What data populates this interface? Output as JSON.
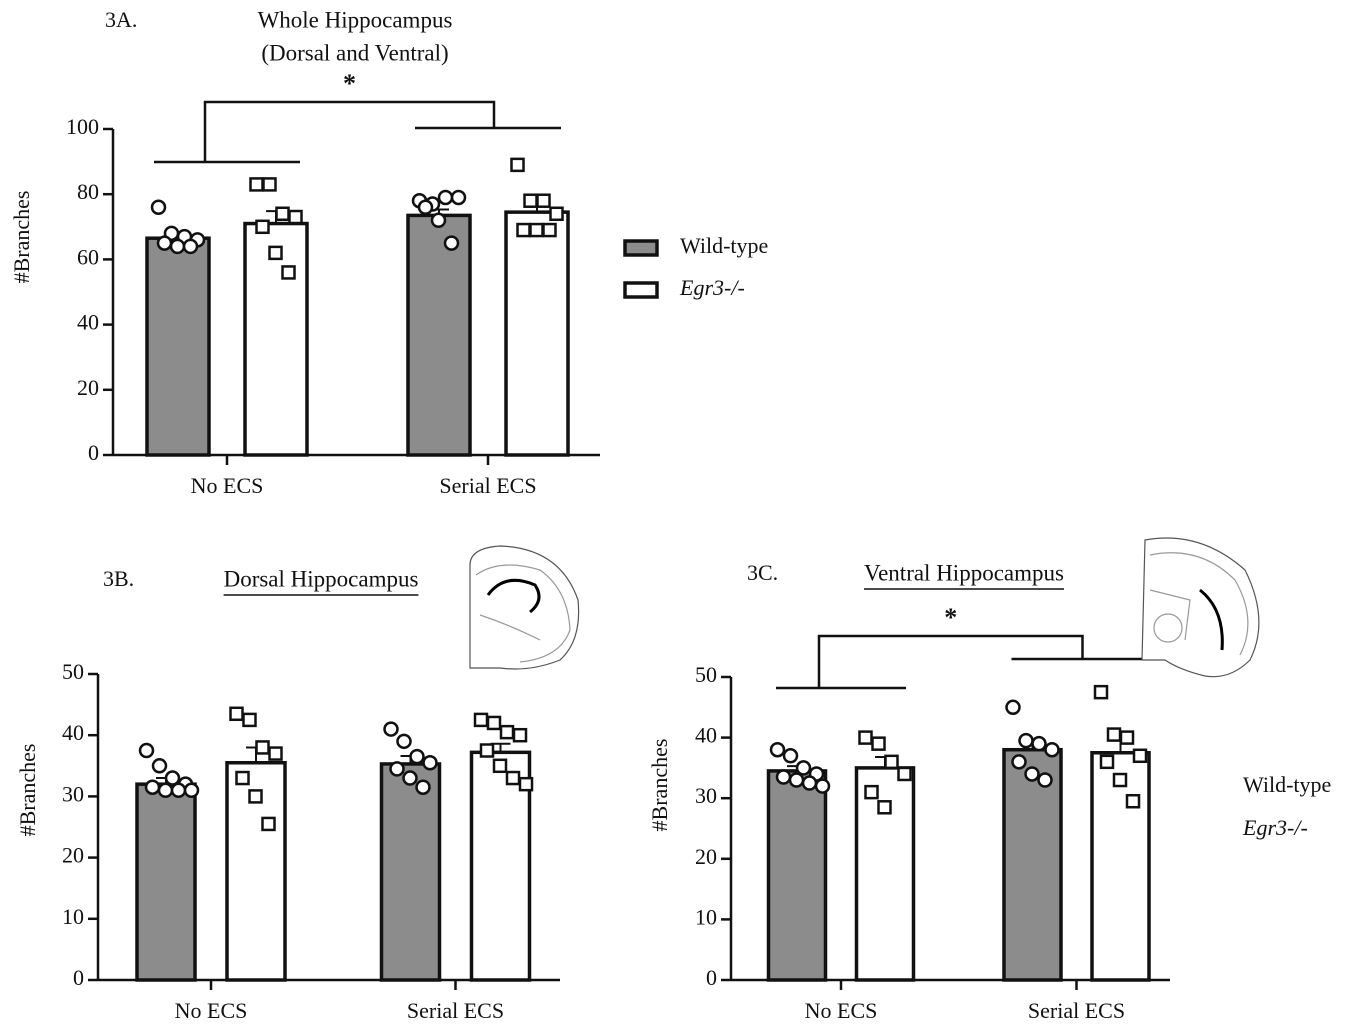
{
  "chart_data": [
    {
      "type": "bar",
      "panel": "3A.",
      "title": "Whole Hippocampus",
      "subtitle": "(Dorsal and Ventral)",
      "y_label": "#Branches",
      "categories": [
        "No ECS",
        "Serial ECS"
      ],
      "series": [
        {
          "name": "Wild-type",
          "color": "#8c8c8c",
          "marker": "circle",
          "values": [
            66.5,
            73.5
          ],
          "errors": [
            1.5,
            1.8
          ],
          "points": [
            [
              76,
              68,
              67,
              66,
              65,
              64,
              64
            ],
            [
              78,
              77,
              79,
              79,
              76,
              72,
              65
            ]
          ]
        },
        {
          "name": "Egr3-/-",
          "color": "#ffffff",
          "marker": "square",
          "values": [
            71,
            74.5
          ],
          "errors": [
            3.8,
            2.5
          ],
          "points": [
            [
              83,
              83,
              74,
              73,
              70,
              62,
              56
            ],
            [
              89,
              78,
              78,
              74,
              69,
              69,
              69
            ]
          ]
        }
      ],
      "ylim": [
        0,
        100
      ],
      "yticks": [
        0,
        20,
        40,
        60,
        80,
        100
      ],
      "significance": "*",
      "legend": "right",
      "legend_swatches": true
    },
    {
      "type": "bar",
      "panel": "3B.",
      "title": "Dorsal Hippocampus",
      "y_label": "#Branches",
      "categories": [
        "No ECS",
        "Serial ECS"
      ],
      "series": [
        {
          "color": "#8c8c8c",
          "marker": "circle",
          "values": [
            32,
            35.3
          ],
          "errors": [
            1,
            1.3
          ],
          "points": [
            [
              37.5,
              35,
              33,
              32,
              31.5,
              31,
              31,
              31
            ],
            [
              41,
              39,
              36.5,
              35.5,
              34.5,
              33,
              31.5
            ]
          ]
        },
        {
          "color": "#ffffff",
          "marker": "square",
          "values": [
            35.5,
            37.2
          ],
          "errors": [
            2.5,
            1.4
          ],
          "points": [
            [
              43.5,
              42.5,
              38,
              37,
              33,
              30,
              25.5
            ],
            [
              42.5,
              42,
              40.5,
              40,
              37.5,
              35,
              33,
              32
            ]
          ]
        }
      ],
      "ylim": [
        0,
        50
      ],
      "yticks": [
        0,
        10,
        20,
        30,
        40,
        50
      ]
    },
    {
      "type": "bar",
      "panel": "3C.",
      "title": "Ventral Hippocampus",
      "y_label": "#Branches",
      "categories": [
        "No ECS",
        "Serial ECS"
      ],
      "series": [
        {
          "name": "Wild-type",
          "color": "#8c8c8c",
          "marker": "circle",
          "values": [
            34.5,
            38
          ],
          "errors": [
            0.8,
            1.2
          ],
          "points": [
            [
              38,
              37,
              35,
              34,
              33.5,
              33,
              32.5,
              32
            ],
            [
              45,
              39.5,
              39,
              38,
              36,
              34,
              33
            ]
          ]
        },
        {
          "name": "Egr3-/-",
          "color": "#ffffff",
          "marker": "square",
          "values": [
            35,
            37.5
          ],
          "errors": [
            1.8,
            2
          ],
          "points": [
            [
              40,
              39,
              36,
              34,
              31,
              28.5
            ],
            [
              47.5,
              40.5,
              40,
              37,
              36,
              33,
              29.5
            ]
          ]
        }
      ],
      "ylim": [
        0,
        50
      ],
      "yticks": [
        0,
        10,
        20,
        30,
        40,
        50
      ],
      "significance": "*",
      "legend": "right",
      "legend_swatches": false
    }
  ]
}
